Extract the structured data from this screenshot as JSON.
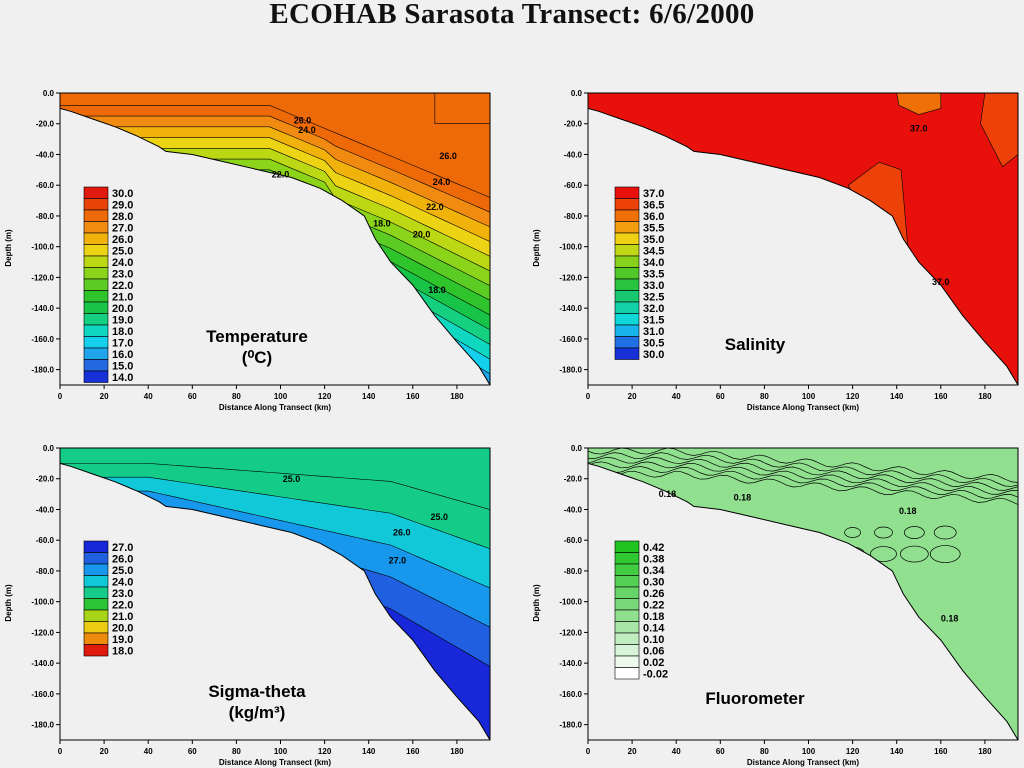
{
  "title": "ECOHAB Sarasota Transect: 6/6/2000",
  "chart_data": [
    {
      "id": "temperature",
      "type": "contour",
      "name_lines": [
        "Temperature",
        "(⁰C)"
      ],
      "xlabel": "Distance Along Transect (km)",
      "ylabel": "Depth (m)",
      "xlim": [
        0,
        195
      ],
      "ylim": [
        -190,
        0
      ],
      "xticks": [
        "0",
        "20",
        "40",
        "60",
        "80",
        "100",
        "120",
        "140",
        "160",
        "180"
      ],
      "yticks": [
        "0.0",
        "-20.0",
        "-40.0",
        "-60.0",
        "-80.0",
        "-100.0",
        "-120.0",
        "-140.0",
        "-160.0",
        "-180.0"
      ],
      "legend_values": [
        "30.0",
        "29.0",
        "28.0",
        "27.0",
        "26.0",
        "25.0",
        "24.0",
        "23.0",
        "22.0",
        "21.0",
        "20.0",
        "19.0",
        "18.0",
        "17.0",
        "16.0",
        "15.0",
        "14.0"
      ],
      "legend_colors": [
        "#e01a0c",
        "#e8440a",
        "#ee6a08",
        "#f08a10",
        "#f2b20c",
        "#ecd414",
        "#bcd814",
        "#8cd41a",
        "#5ccc24",
        "#30c42c",
        "#18c448",
        "#14d080",
        "#10d8c0",
        "#14d0ec",
        "#20a4ec",
        "#2468e0",
        "#1830d8"
      ],
      "contour_labels": [
        {
          "text": "26.0",
          "x": 110,
          "y": -20
        },
        {
          "text": "24.0",
          "x": 112,
          "y": -26
        },
        {
          "text": "22.0",
          "x": 100,
          "y": -55
        },
        {
          "text": "26.0",
          "x": 176,
          "y": -43
        },
        {
          "text": "24.0",
          "x": 173,
          "y": -60
        },
        {
          "text": "22.0",
          "x": 170,
          "y": -76
        },
        {
          "text": "20.0",
          "x": 164,
          "y": -94
        },
        {
          "text": "18.0",
          "x": 146,
          "y": -87
        },
        {
          "text": "18.0",
          "x": 171,
          "y": -130
        }
      ]
    },
    {
      "id": "salinity",
      "type": "contour",
      "name_lines": [
        "Salinity"
      ],
      "xlabel": "Distance Along Transect (km)",
      "ylabel": "Depth (m)",
      "xlim": [
        0,
        195
      ],
      "ylim": [
        -190,
        0
      ],
      "xticks": [
        "0",
        "20",
        "40",
        "60",
        "80",
        "100",
        "120",
        "140",
        "160",
        "180"
      ],
      "yticks": [
        "0.0",
        "-20.0",
        "-40.0",
        "-60.0",
        "-80.0",
        "-100.0",
        "-120.0",
        "-140.0",
        "-160.0",
        "-180.0"
      ],
      "legend_values": [
        "37.0",
        "36.5",
        "36.0",
        "35.5",
        "35.0",
        "34.5",
        "34.0",
        "33.5",
        "33.0",
        "32.5",
        "32.0",
        "31.5",
        "31.0",
        "30.5",
        "30.0"
      ],
      "legend_colors": [
        "#e8100a",
        "#ec420a",
        "#f07008",
        "#f29e10",
        "#eed014",
        "#c0d818",
        "#88d01c",
        "#50c828",
        "#28c440",
        "#18c870",
        "#14d0a8",
        "#10d8d8",
        "#18b4ec",
        "#2070e4",
        "#1830d8"
      ],
      "contour_labels": [
        {
          "text": "37.0",
          "x": 150,
          "y": -25
        },
        {
          "text": "37.0",
          "x": 160,
          "y": -125
        }
      ]
    },
    {
      "id": "sigma-theta",
      "type": "contour",
      "name_lines": [
        "Sigma-theta",
        "(kg/m³)"
      ],
      "xlabel": "Distance Along Transect (km)",
      "ylabel": "Depth (m)",
      "xlim": [
        0,
        195
      ],
      "ylim": [
        -190,
        0
      ],
      "xticks": [
        "0",
        "20",
        "40",
        "60",
        "80",
        "100",
        "120",
        "140",
        "160",
        "180"
      ],
      "yticks": [
        "0.0",
        "-20.0",
        "-40.0",
        "-60.0",
        "-80.0",
        "-100.0",
        "-120.0",
        "-140.0",
        "-160.0",
        "-180.0"
      ],
      "legend_values": [
        "27.0",
        "26.0",
        "25.0",
        "24.0",
        "23.0",
        "22.0",
        "21.0",
        "20.0",
        "19.0",
        "18.0"
      ],
      "legend_colors": [
        "#1828d8",
        "#2060e0",
        "#1898ec",
        "#10c8d8",
        "#14cc88",
        "#2cc434",
        "#a8d418",
        "#eccc14",
        "#ee8a0c",
        "#e01a0c"
      ],
      "contour_labels": [
        {
          "text": "25.0",
          "x": 105,
          "y": -22
        },
        {
          "text": "25.0",
          "x": 172,
          "y": -47
        },
        {
          "text": "26.0",
          "x": 155,
          "y": -57
        },
        {
          "text": "27.0",
          "x": 153,
          "y": -75
        }
      ]
    },
    {
      "id": "fluorometer",
      "type": "contour",
      "name_lines": [
        "Fluorometer"
      ],
      "xlabel": "Distance Along Transect (km)",
      "ylabel": "Depth (m)",
      "xlim": [
        0,
        195
      ],
      "ylim": [
        -190,
        0
      ],
      "xticks": [
        "0",
        "20",
        "40",
        "60",
        "80",
        "100",
        "120",
        "140",
        "160",
        "180"
      ],
      "yticks": [
        "0.0",
        "-20.0",
        "-40.0",
        "-60.0",
        "-80.0",
        "-100.0",
        "-120.0",
        "-140.0",
        "-160.0",
        "-180.0"
      ],
      "legend_values": [
        "0.42",
        "0.38",
        "0.34",
        "0.30",
        "0.26",
        "0.22",
        "0.18",
        "0.14",
        "0.10",
        "0.06",
        "0.02",
        "-0.02"
      ],
      "legend_colors": [
        "#20c420",
        "#30c830",
        "#42cc42",
        "#54d054",
        "#66d466",
        "#78d878",
        "#90e090",
        "#a8e6a8",
        "#c0ecc0",
        "#d8f4d8",
        "#ecfaec",
        "#ffffff"
      ],
      "contour_labels": [
        {
          "text": "0.18",
          "x": 70,
          "y": -34
        },
        {
          "text": "0.18",
          "x": 36,
          "y": -32
        },
        {
          "text": "0.18",
          "x": 145,
          "y": -43
        },
        {
          "text": "0.18",
          "x": 164,
          "y": -113
        }
      ]
    }
  ]
}
